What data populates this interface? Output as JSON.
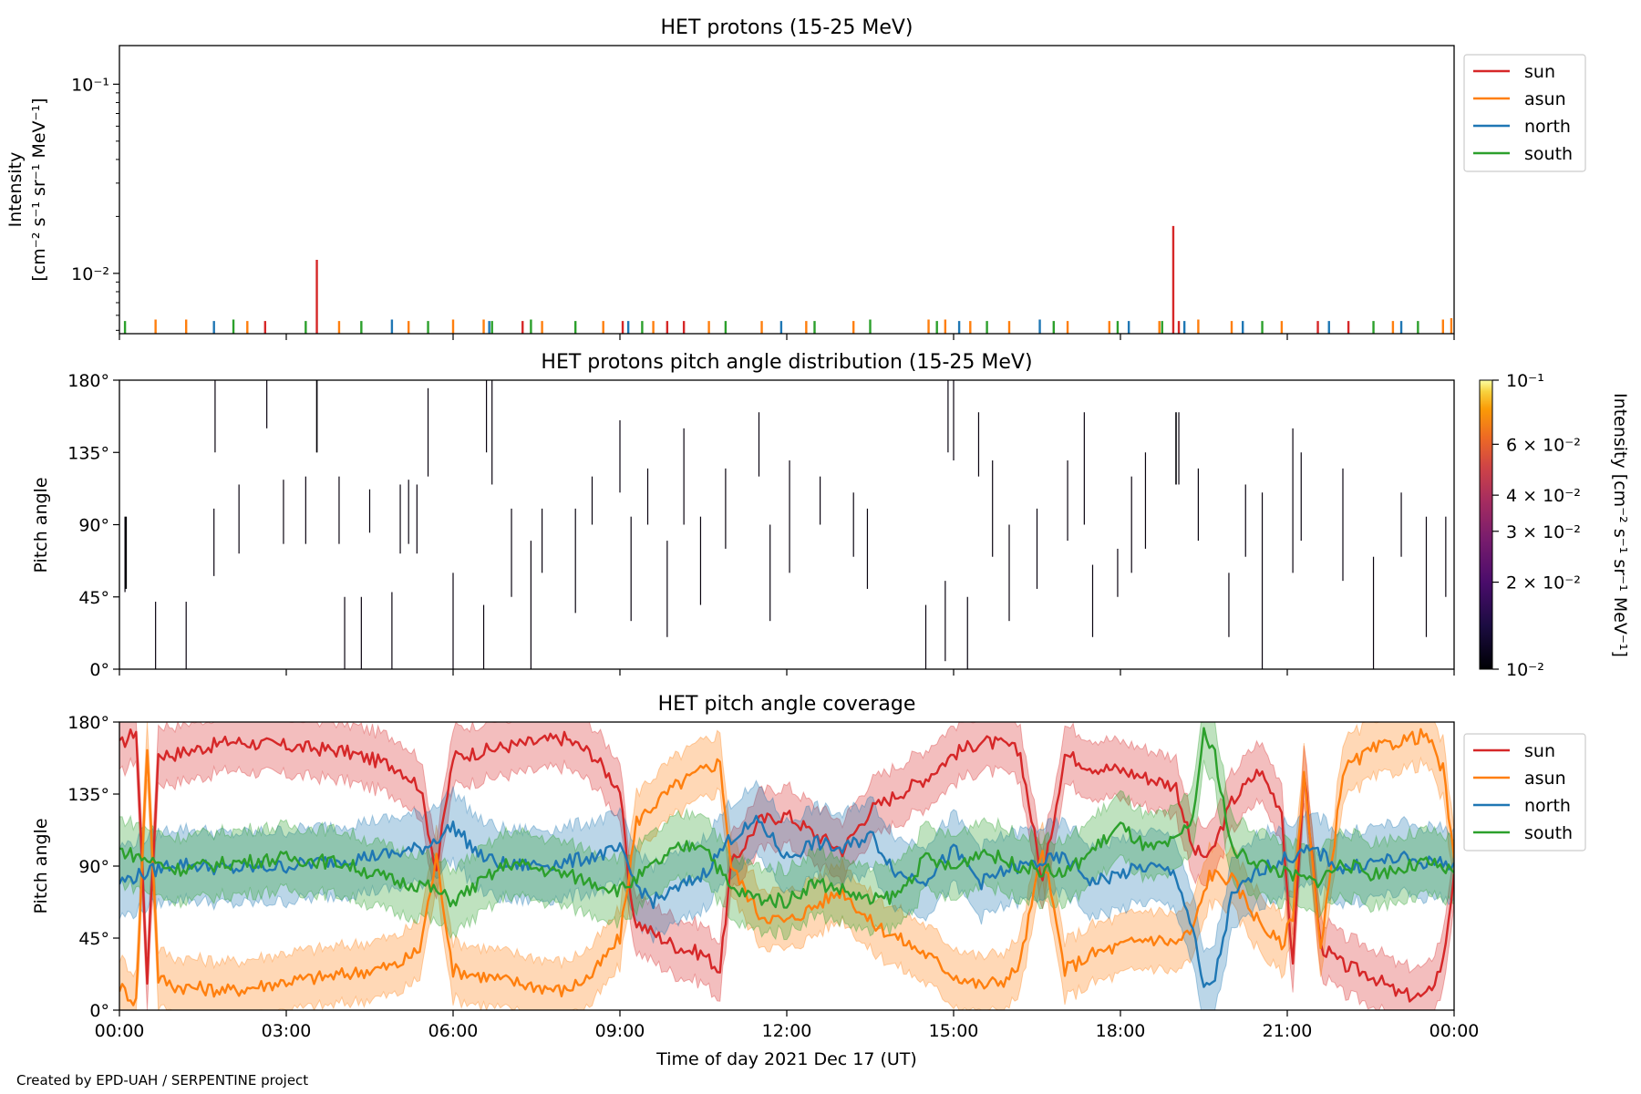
{
  "chart_data": [
    {
      "type": "bar",
      "title": "HET protons (15-25 MeV)",
      "ylabel_line1": "Intensity",
      "ylabel_line2": "[cm⁻² s⁻¹ sr⁻¹ MeV⁻¹]",
      "yscale": "log",
      "ylim": [
        0.0048,
        0.16
      ],
      "yticks": [
        {
          "value": 0.1,
          "label": "10⁻¹"
        },
        {
          "value": 0.01,
          "label": "10⁻²"
        }
      ],
      "x_range_hours": [
        0,
        24
      ],
      "legend": {
        "placement": "upper-right-outside",
        "entries": [
          "sun",
          "asun",
          "north",
          "south"
        ]
      },
      "series": [
        {
          "name": "sun",
          "color": "#d62728",
          "spikes": [
            [
              2.62,
              0.0056
            ],
            [
              3.55,
              0.0118
            ],
            [
              7.25,
              0.0056
            ],
            [
              9.05,
              0.0056
            ],
            [
              9.85,
              0.0056
            ],
            [
              10.15,
              0.0056
            ],
            [
              18.95,
              0.0178
            ],
            [
              19.05,
              0.0056
            ],
            [
              21.55,
              0.0056
            ],
            [
              22.1,
              0.0056
            ]
          ]
        },
        {
          "name": "asun",
          "color": "#ff7f0e",
          "spikes": [
            [
              0.65,
              0.0057
            ],
            [
              1.2,
              0.0057
            ],
            [
              2.3,
              0.0056
            ],
            [
              3.95,
              0.0056
            ],
            [
              5.2,
              0.0056
            ],
            [
              6.0,
              0.0057
            ],
            [
              6.55,
              0.0057
            ],
            [
              7.6,
              0.0056
            ],
            [
              8.7,
              0.0056
            ],
            [
              9.6,
              0.0056
            ],
            [
              10.6,
              0.0056
            ],
            [
              11.55,
              0.0056
            ],
            [
              12.35,
              0.0056
            ],
            [
              13.2,
              0.0056
            ],
            [
              14.55,
              0.0057
            ],
            [
              14.85,
              0.0057
            ],
            [
              15.3,
              0.0056
            ],
            [
              16.0,
              0.0056
            ],
            [
              17.05,
              0.0056
            ],
            [
              17.8,
              0.0056
            ],
            [
              18.7,
              0.0056
            ],
            [
              19.4,
              0.0057
            ],
            [
              20.0,
              0.0056
            ],
            [
              20.9,
              0.0056
            ],
            [
              22.9,
              0.0056
            ],
            [
              23.8,
              0.0057
            ],
            [
              23.95,
              0.0058
            ]
          ]
        },
        {
          "name": "north",
          "color": "#1f77b4",
          "spikes": [
            [
              1.7,
              0.0056
            ],
            [
              4.9,
              0.0057
            ],
            [
              6.65,
              0.0056
            ],
            [
              9.15,
              0.0056
            ],
            [
              11.9,
              0.0056
            ],
            [
              15.1,
              0.0056
            ],
            [
              16.55,
              0.0057
            ],
            [
              18.15,
              0.0056
            ],
            [
              19.15,
              0.0056
            ],
            [
              20.2,
              0.0056
            ],
            [
              21.75,
              0.0056
            ],
            [
              23.05,
              0.0056
            ]
          ]
        },
        {
          "name": "south",
          "color": "#2ca02c",
          "spikes": [
            [
              0.1,
              0.0056
            ],
            [
              2.05,
              0.0057
            ],
            [
              3.35,
              0.0056
            ],
            [
              4.35,
              0.0056
            ],
            [
              5.55,
              0.0056
            ],
            [
              6.7,
              0.0056
            ],
            [
              7.4,
              0.0057
            ],
            [
              8.2,
              0.0056
            ],
            [
              9.4,
              0.0056
            ],
            [
              10.9,
              0.0056
            ],
            [
              12.5,
              0.0056
            ],
            [
              13.5,
              0.0057
            ],
            [
              14.7,
              0.0056
            ],
            [
              15.6,
              0.0056
            ],
            [
              16.8,
              0.0056
            ],
            [
              17.95,
              0.0056
            ],
            [
              18.75,
              0.0056
            ],
            [
              20.55,
              0.0056
            ],
            [
              22.55,
              0.0056
            ],
            [
              23.35,
              0.0056
            ]
          ]
        }
      ]
    },
    {
      "type": "heatmap",
      "title": "HET protons pitch angle distribution (15-25 MeV)",
      "ylabel": "Pitch angle",
      "ylim": [
        0,
        180
      ],
      "yticks": [
        "0°",
        "45°",
        "90°",
        "135°",
        "180°"
      ],
      "x_range_hours": [
        0,
        24
      ],
      "colorbar": {
        "label": "Intensity [cm⁻² s⁻¹ sr⁻¹ MeV⁻¹]",
        "scale": "log",
        "range": [
          0.01,
          0.1
        ],
        "ticks": [
          {
            "value": 0.1,
            "label": "10⁻¹"
          },
          {
            "value": 0.06,
            "label": "6 × 10⁻²"
          },
          {
            "value": 0.04,
            "label": "4 × 10⁻²"
          },
          {
            "value": 0.03,
            "label": "3 × 10⁻²"
          },
          {
            "value": 0.02,
            "label": "2 × 10⁻²"
          },
          {
            "value": 0.01,
            "label": "10⁻²"
          }
        ]
      },
      "segments": [
        [
          0.1,
          48,
          95
        ],
        [
          0.65,
          0,
          42
        ],
        [
          1.2,
          0,
          42
        ],
        [
          1.7,
          58,
          100
        ],
        [
          1.72,
          135,
          180
        ],
        [
          2.15,
          72,
          115
        ],
        [
          2.65,
          150,
          180
        ],
        [
          2.95,
          78,
          118
        ],
        [
          3.35,
          78,
          120
        ],
        [
          3.55,
          135,
          180
        ],
        [
          3.95,
          78,
          120
        ],
        [
          4.05,
          0,
          45
        ],
        [
          4.35,
          0,
          45
        ],
        [
          4.5,
          85,
          112
        ],
        [
          4.9,
          0,
          48
        ],
        [
          5.05,
          72,
          115
        ],
        [
          5.2,
          78,
          118
        ],
        [
          5.35,
          72,
          115
        ],
        [
          5.55,
          120,
          175
        ],
        [
          6.0,
          0,
          60
        ],
        [
          6.55,
          0,
          40
        ],
        [
          6.6,
          135,
          180
        ],
        [
          6.7,
          115,
          180
        ],
        [
          7.05,
          45,
          100
        ],
        [
          7.4,
          0,
          80
        ],
        [
          7.6,
          60,
          100
        ],
        [
          8.2,
          35,
          100
        ],
        [
          8.5,
          90,
          120
        ],
        [
          9.0,
          110,
          155
        ],
        [
          9.2,
          30,
          95
        ],
        [
          9.5,
          90,
          125
        ],
        [
          9.85,
          20,
          80
        ],
        [
          10.15,
          90,
          150
        ],
        [
          10.45,
          40,
          95
        ],
        [
          10.9,
          75,
          125
        ],
        [
          11.5,
          120,
          160
        ],
        [
          11.7,
          30,
          90
        ],
        [
          12.05,
          60,
          130
        ],
        [
          12.6,
          90,
          120
        ],
        [
          13.2,
          70,
          110
        ],
        [
          13.45,
          50,
          100
        ],
        [
          14.5,
          0,
          40
        ],
        [
          14.85,
          5,
          55
        ],
        [
          14.9,
          135,
          180
        ],
        [
          15.0,
          130,
          180
        ],
        [
          15.25,
          0,
          45
        ],
        [
          15.45,
          120,
          160
        ],
        [
          15.7,
          70,
          130
        ],
        [
          16.0,
          30,
          90
        ],
        [
          16.5,
          50,
          100
        ],
        [
          17.05,
          80,
          130
        ],
        [
          17.35,
          90,
          160
        ],
        [
          17.5,
          20,
          65
        ],
        [
          17.95,
          45,
          75
        ],
        [
          18.2,
          60,
          120
        ],
        [
          18.45,
          75,
          135
        ],
        [
          19.05,
          115,
          160
        ],
        [
          19.4,
          80,
          125
        ],
        [
          19.95,
          20,
          60
        ],
        [
          20.25,
          70,
          115
        ],
        [
          20.55,
          0,
          110
        ],
        [
          21.1,
          60,
          150
        ],
        [
          21.25,
          80,
          135
        ],
        [
          22.0,
          55,
          125
        ],
        [
          22.55,
          0,
          70
        ],
        [
          23.05,
          70,
          110
        ],
        [
          23.5,
          20,
          95
        ],
        [
          23.85,
          45,
          95
        ]
      ],
      "bright_segments": [
        [
          3.55,
          135,
          180,
          0.013
        ],
        [
          19.0,
          115,
          160,
          0.016
        ],
        [
          0.12,
          50,
          95,
          0.011
        ]
      ]
    },
    {
      "type": "line",
      "title": "HET pitch angle coverage",
      "ylabel": "Pitch angle",
      "xlabel": "Time of day 2021 Dec 17 (UT)",
      "ylim": [
        0,
        180
      ],
      "yticks": [
        "0°",
        "45°",
        "90°",
        "135°",
        "180°"
      ],
      "x_range_hours": [
        0,
        24
      ],
      "xticks": [
        "00:00",
        "03:00",
        "06:00",
        "09:00",
        "12:00",
        "15:00",
        "18:00",
        "21:00",
        "00:00"
      ],
      "legend": {
        "placement": "upper-right-outside",
        "entries": [
          "sun",
          "asun",
          "north",
          "south"
        ]
      },
      "series": [
        {
          "name": "sun",
          "color": "#d62728",
          "band_halfwidth": 18,
          "x": [
            0,
            0.3,
            0.5,
            0.7,
            1,
            2,
            3,
            4,
            5,
            5.4,
            5.7,
            6,
            7,
            8,
            8.5,
            9,
            9.2,
            9.3,
            9.6,
            10,
            10.5,
            10.8,
            11,
            11.5,
            12,
            12.5,
            13,
            13.5,
            14,
            14.5,
            15,
            15.5,
            16,
            16.2,
            16.6,
            17,
            17.5,
            18,
            18.5,
            19,
            19.3,
            19.6,
            20,
            20.5,
            20.9,
            21.1,
            21.3,
            21.6,
            22,
            22.5,
            23,
            23.5,
            23.8,
            24
          ],
          "y": [
            165,
            175,
            20,
            160,
            160,
            168,
            165,
            162,
            152,
            140,
            88,
            158,
            165,
            170,
            160,
            138,
            65,
            55,
            48,
            40,
            35,
            25,
            90,
            118,
            122,
            110,
            100,
            125,
            135,
            145,
            160,
            168,
            165,
            160,
            80,
            160,
            152,
            150,
            145,
            140,
            100,
            95,
            130,
            150,
            125,
            25,
            150,
            40,
            28,
            22,
            10,
            8,
            30,
            85
          ]
        },
        {
          "name": "asun",
          "color": "#ff7f0e",
          "band_halfwidth": 18,
          "x": [
            0,
            0.3,
            0.5,
            0.7,
            1,
            2,
            3,
            4,
            5,
            5.4,
            5.7,
            6,
            7,
            8,
            8.5,
            9,
            9.3,
            9.6,
            10,
            10.5,
            10.8,
            11,
            11.5,
            12,
            12.5,
            13,
            13.5,
            14,
            14.5,
            15,
            15.5,
            16,
            16.2,
            16.6,
            17,
            17.5,
            18,
            18.5,
            19,
            19.3,
            19.6,
            20,
            20.5,
            20.9,
            21.1,
            21.3,
            21.6,
            22,
            22.5,
            23,
            23.5,
            23.8,
            24
          ],
          "y": [
            15,
            5,
            165,
            20,
            15,
            12,
            18,
            22,
            28,
            38,
            95,
            25,
            18,
            12,
            22,
            45,
            118,
            128,
            140,
            150,
            155,
            90,
            60,
            55,
            65,
            75,
            55,
            45,
            35,
            22,
            15,
            20,
            30,
            100,
            25,
            35,
            40,
            45,
            42,
            50,
            85,
            82,
            55,
            40,
            60,
            150,
            35,
            150,
            162,
            168,
            172,
            150,
            95
          ]
        },
        {
          "name": "north",
          "color": "#1f77b4",
          "band_halfwidth": 22,
          "x": [
            0,
            1,
            2,
            3,
            4,
            5,
            5.5,
            6,
            6.5,
            7,
            8,
            9,
            9.3,
            9.6,
            10,
            10.5,
            11,
            11.5,
            12,
            12.5,
            13,
            13.5,
            14,
            14.5,
            15,
            15.5,
            16,
            16.5,
            17,
            17.5,
            18,
            18.5,
            19,
            19.3,
            19.5,
            19.7,
            20,
            20.5,
            21,
            21.5,
            22,
            22.5,
            23,
            23.5,
            24
          ],
          "y": [
            80,
            92,
            88,
            90,
            94,
            98,
            102,
            115,
            96,
            90,
            92,
            100,
            78,
            68,
            75,
            85,
            108,
            118,
            95,
            105,
            100,
            110,
            85,
            82,
            100,
            80,
            88,
            92,
            95,
            80,
            85,
            90,
            85,
            50,
            12,
            20,
            70,
            88,
            95,
            100,
            88,
            92,
            95,
            92,
            92
          ]
        },
        {
          "name": "south",
          "color": "#2ca02c",
          "band_halfwidth": 20,
          "x": [
            0,
            1,
            2,
            3,
            4,
            5,
            5.5,
            6,
            6.5,
            7,
            8,
            9,
            9.3,
            9.6,
            10,
            10.5,
            11,
            11.5,
            12,
            12.5,
            13,
            13.5,
            14,
            14.5,
            15,
            15.5,
            16,
            16.5,
            17,
            17.5,
            18,
            18.5,
            19,
            19.3,
            19.5,
            19.7,
            20,
            20.5,
            21,
            21.5,
            22,
            22.5,
            23,
            23.5,
            24
          ],
          "y": [
            100,
            88,
            92,
            95,
            92,
            80,
            78,
            68,
            80,
            92,
            85,
            75,
            82,
            90,
            100,
            105,
            75,
            70,
            68,
            80,
            75,
            68,
            72,
            95,
            88,
            100,
            92,
            88,
            85,
            100,
            115,
            100,
            105,
            120,
            172,
            160,
            100,
            92,
            85,
            80,
            92,
            85,
            88,
            92,
            86
          ]
        }
      ]
    }
  ],
  "credit": "Created by EPD-UAH / SERPENTINE project",
  "colors": {
    "sun": "#d62728",
    "asun": "#ff7f0e",
    "north": "#1f77b4",
    "south": "#2ca02c"
  }
}
